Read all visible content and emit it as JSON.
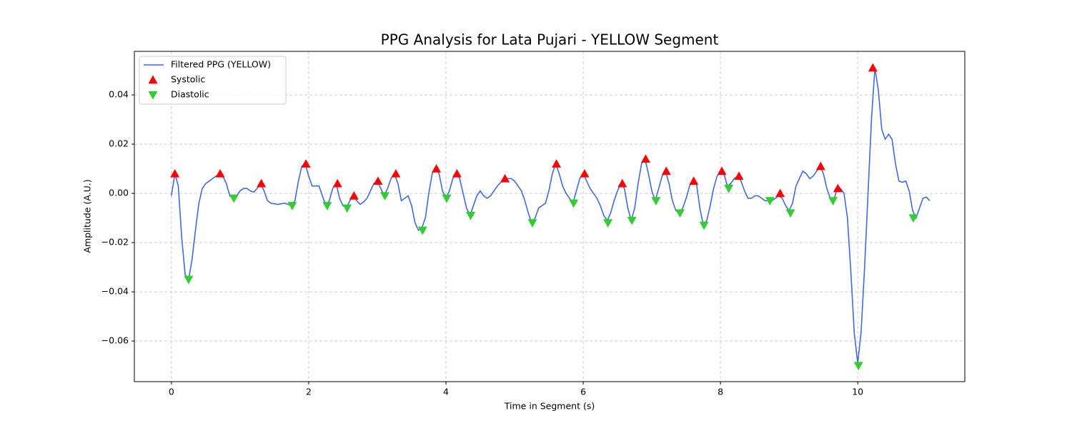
{
  "chart_data": {
    "type": "line",
    "title": "PPG Analysis for Lata Pujari - YELLOW Segment",
    "x_label": "Time in Segment (s)",
    "y_label": "Amplitude (A.U.)",
    "xlim": [
      -0.54,
      11.56
    ],
    "ylim": [
      -0.0765,
      0.0577
    ],
    "xticks": [
      0,
      2,
      4,
      6,
      8,
      10
    ],
    "yticks": [
      {
        "value": -0.06,
        "label": "−0.06"
      },
      {
        "value": -0.04,
        "label": "−0.04"
      },
      {
        "value": -0.02,
        "label": "−0.02"
      },
      {
        "value": 0,
        "label": "0.00"
      },
      {
        "value": 0.02,
        "label": "0.02"
      },
      {
        "value": 0.04,
        "label": "0.04"
      }
    ],
    "grid": true,
    "legend": "upper left",
    "series": [
      {
        "name": "Filtered PPG (YELLOW)",
        "color": "#4169e1",
        "marker": "line",
        "x": [
          0,
          0.05,
          0.1,
          0.15,
          0.2,
          0.25,
          0.3,
          0.35,
          0.4,
          0.45,
          0.5,
          0.55,
          0.6,
          0.7,
          0.75,
          0.8,
          0.85,
          0.9,
          0.95,
          1.0,
          1.05,
          1.1,
          1.15,
          1.2,
          1.25,
          1.3,
          1.35,
          1.4,
          1.45,
          1.55,
          1.65,
          1.75,
          1.8,
          1.85,
          1.9,
          1.95,
          2.0,
          2.05,
          2.1,
          2.15,
          2.2,
          2.25,
          2.3,
          2.35,
          2.4,
          2.45,
          2.5,
          2.55,
          2.6,
          2.65,
          2.7,
          2.75,
          2.8,
          2.85,
          2.9,
          2.95,
          3.0,
          3.05,
          3.1,
          3.15,
          3.2,
          3.25,
          3.3,
          3.35,
          3.4,
          3.45,
          3.5,
          3.55,
          3.6,
          3.65,
          3.7,
          3.75,
          3.8,
          3.85,
          3.9,
          3.95,
          4.0,
          4.05,
          4.1,
          4.15,
          4.2,
          4.25,
          4.3,
          4.35,
          4.4,
          4.45,
          4.5,
          4.55,
          4.6,
          4.65,
          4.7,
          4.75,
          4.85,
          4.95,
          5.0,
          5.05,
          5.1,
          5.15,
          5.2,
          5.25,
          5.3,
          5.35,
          5.4,
          5.45,
          5.5,
          5.55,
          5.6,
          5.65,
          5.7,
          5.75,
          5.8,
          5.85,
          5.9,
          5.95,
          6.0,
          6.05,
          6.1,
          6.15,
          6.2,
          6.25,
          6.3,
          6.35,
          6.4,
          6.45,
          6.5,
          6.55,
          6.6,
          6.65,
          6.7,
          6.75,
          6.8,
          6.85,
          6.9,
          6.95,
          7.0,
          7.05,
          7.1,
          7.15,
          7.2,
          7.25,
          7.3,
          7.35,
          7.4,
          7.45,
          7.5,
          7.55,
          7.6,
          7.65,
          7.7,
          7.75,
          7.8,
          7.85,
          7.9,
          7.95,
          8.0,
          8.05,
          8.1,
          8.15,
          8.2,
          8.25,
          8.3,
          8.35,
          8.4,
          8.45,
          8.5,
          8.55,
          8.6,
          8.65,
          8.7,
          8.75,
          8.8,
          8.85,
          8.9,
          8.95,
          9.0,
          9.05,
          9.1,
          9.15,
          9.2,
          9.25,
          9.3,
          9.35,
          9.4,
          9.45,
          9.5,
          9.55,
          9.6,
          9.65,
          9.7,
          9.75,
          9.8,
          9.85,
          9.9,
          9.95,
          10.0,
          10.05,
          10.1,
          10.15,
          10.2,
          10.25,
          10.3,
          10.35,
          10.4,
          10.45,
          10.5,
          10.55,
          10.6,
          10.65,
          10.7,
          10.75,
          10.8,
          10.85,
          10.9,
          10.95,
          11.0,
          11.05
        ],
        "values": [
          -0.001,
          0.008,
          0.003,
          -0.018,
          -0.033,
          -0.035,
          -0.027,
          -0.015,
          -0.004,
          0.002,
          0.004,
          0.005,
          0.006,
          0.008,
          0.007,
          0.004,
          -0.001,
          -0.002,
          -0.001,
          0.001,
          0.002,
          0.002,
          0.001,
          0.0005,
          0.002,
          0.004,
          0.001,
          -0.003,
          -0.004,
          -0.0045,
          -0.004,
          -0.005,
          -0.003,
          0.005,
          0.011,
          0.012,
          0.007,
          0.003,
          0.003,
          0.003,
          -0.001,
          -0.005,
          -0.003,
          0.002,
          0.004,
          -0.002,
          -0.005,
          -0.006,
          -0.003,
          -0.001,
          -0.003,
          -0.0045,
          -0.0035,
          -0.002,
          0.001,
          0.004,
          0.005,
          0.002,
          -0.001,
          0.002,
          0.006,
          0.008,
          0.004,
          -0.003,
          -0.002,
          -0.001,
          -0.005,
          -0.012,
          -0.015,
          -0.014,
          -0.01,
          0,
          0.008,
          0.01,
          0.008,
          0.001,
          -0.002,
          0.001,
          0.006,
          0.008,
          0.006,
          0,
          -0.006,
          -0.009,
          -0.005,
          -0.001,
          0.001,
          -0.001,
          -0.002,
          -0.001,
          0.001,
          0.003,
          0.006,
          0.006,
          0.005,
          0.003,
          0.001,
          -0.003,
          -0.008,
          -0.012,
          -0.01,
          -0.006,
          -0.005,
          -0.004,
          0.001,
          0.008,
          0.012,
          0.008,
          0.003,
          0,
          -0.002,
          -0.004,
          0.001,
          0.006,
          0.008,
          0.005,
          0.002,
          0,
          -0.002,
          -0.005,
          -0.009,
          -0.011,
          -0.008,
          -0.003,
          0.001,
          0.004,
          0.002,
          -0.006,
          -0.011,
          -0.006,
          0.004,
          0.012,
          0.014,
          0.008,
          0.001,
          -0.003,
          0.002,
          0.007,
          0.009,
          0.004,
          -0.003,
          -0.007,
          -0.008,
          -0.006,
          -0.002,
          0.003,
          0.005,
          0.004,
          -0.006,
          -0.013,
          -0.011,
          -0.005,
          0.002,
          0.007,
          0.009,
          0.008,
          0.003,
          0.004,
          0.006,
          0.007,
          0.005,
          0.001,
          -0.002,
          -0.002,
          -0.001,
          -0.001,
          -0.002,
          -0.003,
          -0.003,
          -0.003,
          -0.002,
          -0.001,
          -0.002,
          -0.005,
          -0.007,
          -0.004,
          0.003,
          0.006,
          0.009,
          0.008,
          0.006,
          0.007,
          0.009,
          0.011,
          0.008,
          0.002,
          -0.002,
          -0.003,
          0.002,
          0.002,
          0,
          -0.01,
          -0.032,
          -0.057,
          -0.069,
          -0.056,
          -0.03,
          0,
          0.03,
          0.051,
          0.042,
          0.026,
          0.022,
          0.024,
          0.022,
          0.012,
          0.005,
          0.0045,
          0.005,
          0.001,
          -0.007,
          -0.01,
          -0.006,
          -0.002,
          -0.0015,
          -0.003
        ]
      },
      {
        "name": "Systolic",
        "color": "#ff0000",
        "marker": "triangle-up",
        "x": [
          0.05,
          0.71,
          1.31,
          1.96,
          2.42,
          2.66,
          3.01,
          3.27,
          3.86,
          4.16,
          4.86,
          5.61,
          6.02,
          6.57,
          6.91,
          7.21,
          7.61,
          8.02,
          8.27,
          8.87,
          9.46,
          9.71,
          10.22
        ],
        "values": [
          0.008,
          0.008,
          0.004,
          0.012,
          0.004,
          -0.001,
          0.005,
          0.008,
          0.01,
          0.008,
          0.006,
          0.012,
          0.008,
          0.004,
          0.014,
          0.009,
          0.005,
          0.009,
          0.007,
          0,
          0.011,
          0.002,
          0.051
        ]
      },
      {
        "name": "Diastolic",
        "color": "#32cd32",
        "marker": "triangle-down",
        "x": [
          0.25,
          0.91,
          1.76,
          2.27,
          2.56,
          3.11,
          3.66,
          4.01,
          4.36,
          5.26,
          5.86,
          6.36,
          6.71,
          7.06,
          7.41,
          7.76,
          8.12,
          8.72,
          9.02,
          9.64,
          10.01,
          10.81
        ],
        "values": [
          -0.035,
          -0.002,
          -0.005,
          -0.005,
          -0.006,
          -0.001,
          -0.015,
          -0.002,
          -0.009,
          -0.012,
          -0.004,
          -0.012,
          -0.011,
          -0.003,
          -0.008,
          -0.013,
          0.002,
          -0.003,
          -0.008,
          -0.003,
          -0.07,
          -0.01
        ]
      }
    ]
  }
}
